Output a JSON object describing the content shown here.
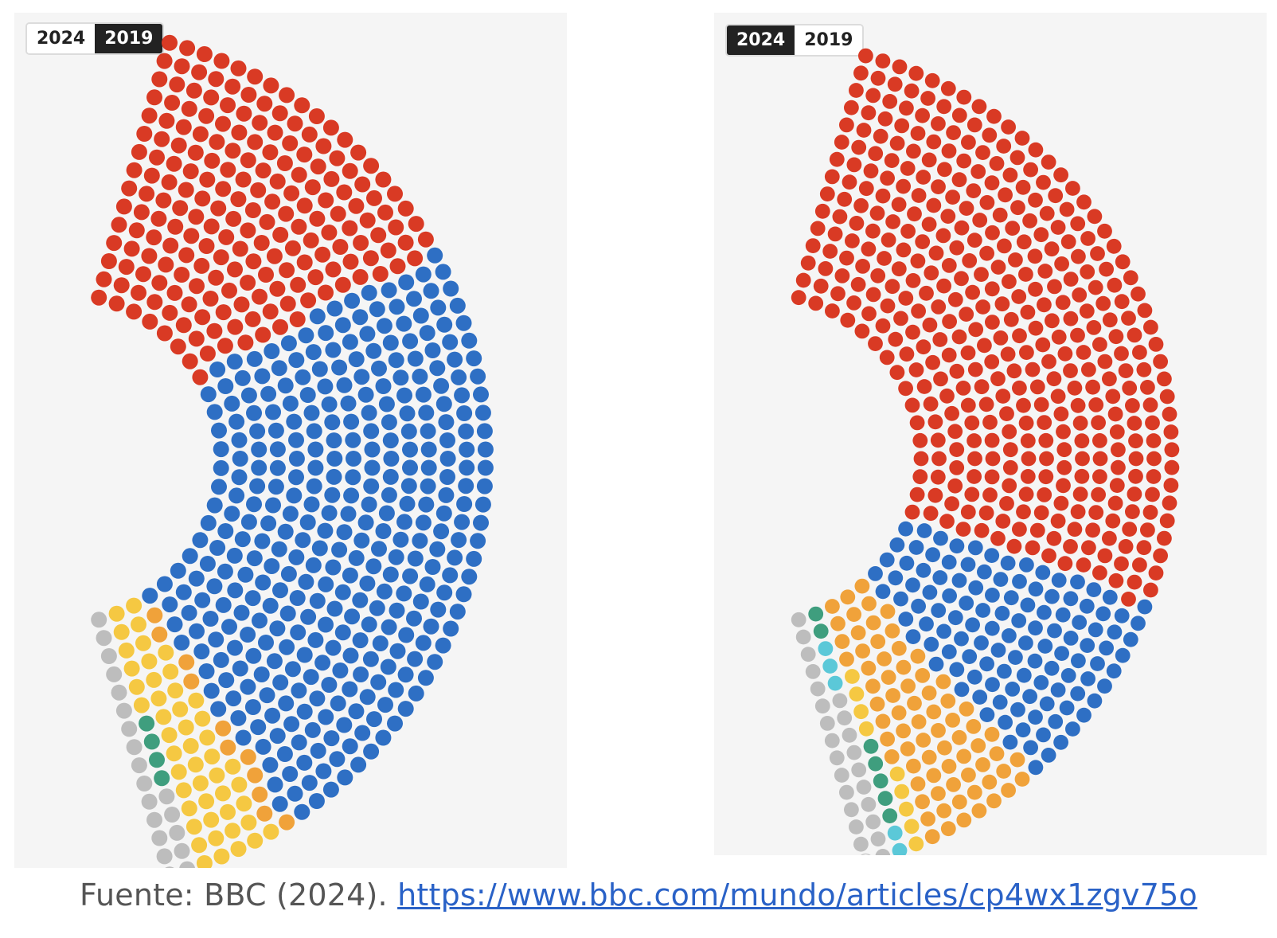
{
  "chart_data": [
    {
      "type": "parliament",
      "active_year": "2019",
      "toggle": {
        "labels": [
          "2024",
          "2019"
        ],
        "selected": "2019"
      },
      "total_seats": 650,
      "series": [
        {
          "name": "",
          "color": "#d93a24",
          "seats": 202
        },
        {
          "name": "",
          "color": "#2e6fc4",
          "seats": 365
        },
        {
          "name": "",
          "color": "#f0a23a",
          "seats": 11
        },
        {
          "name": "",
          "color": "#f5c842",
          "seats": 48
        },
        {
          "name": "",
          "color": "#3f9e7e",
          "seats": 4
        },
        {
          "name": "",
          "color": "#bdbdbd",
          "seats": 20
        }
      ]
    },
    {
      "type": "parliament",
      "active_year": "2024",
      "toggle": {
        "labels": [
          "2024",
          "2019"
        ],
        "selected": "2024"
      },
      "total_seats": 650,
      "series": [
        {
          "name": "",
          "color": "#d93a24",
          "seats": 411
        },
        {
          "name": "",
          "color": "#2e6fc4",
          "seats": 121
        },
        {
          "name": "",
          "color": "#f0a23a",
          "seats": 72
        },
        {
          "name": "",
          "color": "#f5c842",
          "seats": 9
        },
        {
          "name": "",
          "color": "#3f9e7e",
          "seats": 7
        },
        {
          "name": "",
          "color": "#5bc8d8",
          "seats": 5
        },
        {
          "name": "",
          "color": "#bdbdbd",
          "seats": 24
        },
        {
          "name": "",
          "color": "#ffffff",
          "seats": 1
        }
      ]
    }
  ],
  "caption": {
    "prefix": "Fuente: BBC (2024). ",
    "link": "https://www.bbc.com/mundo/articles/cp4wx1zgv75o"
  }
}
